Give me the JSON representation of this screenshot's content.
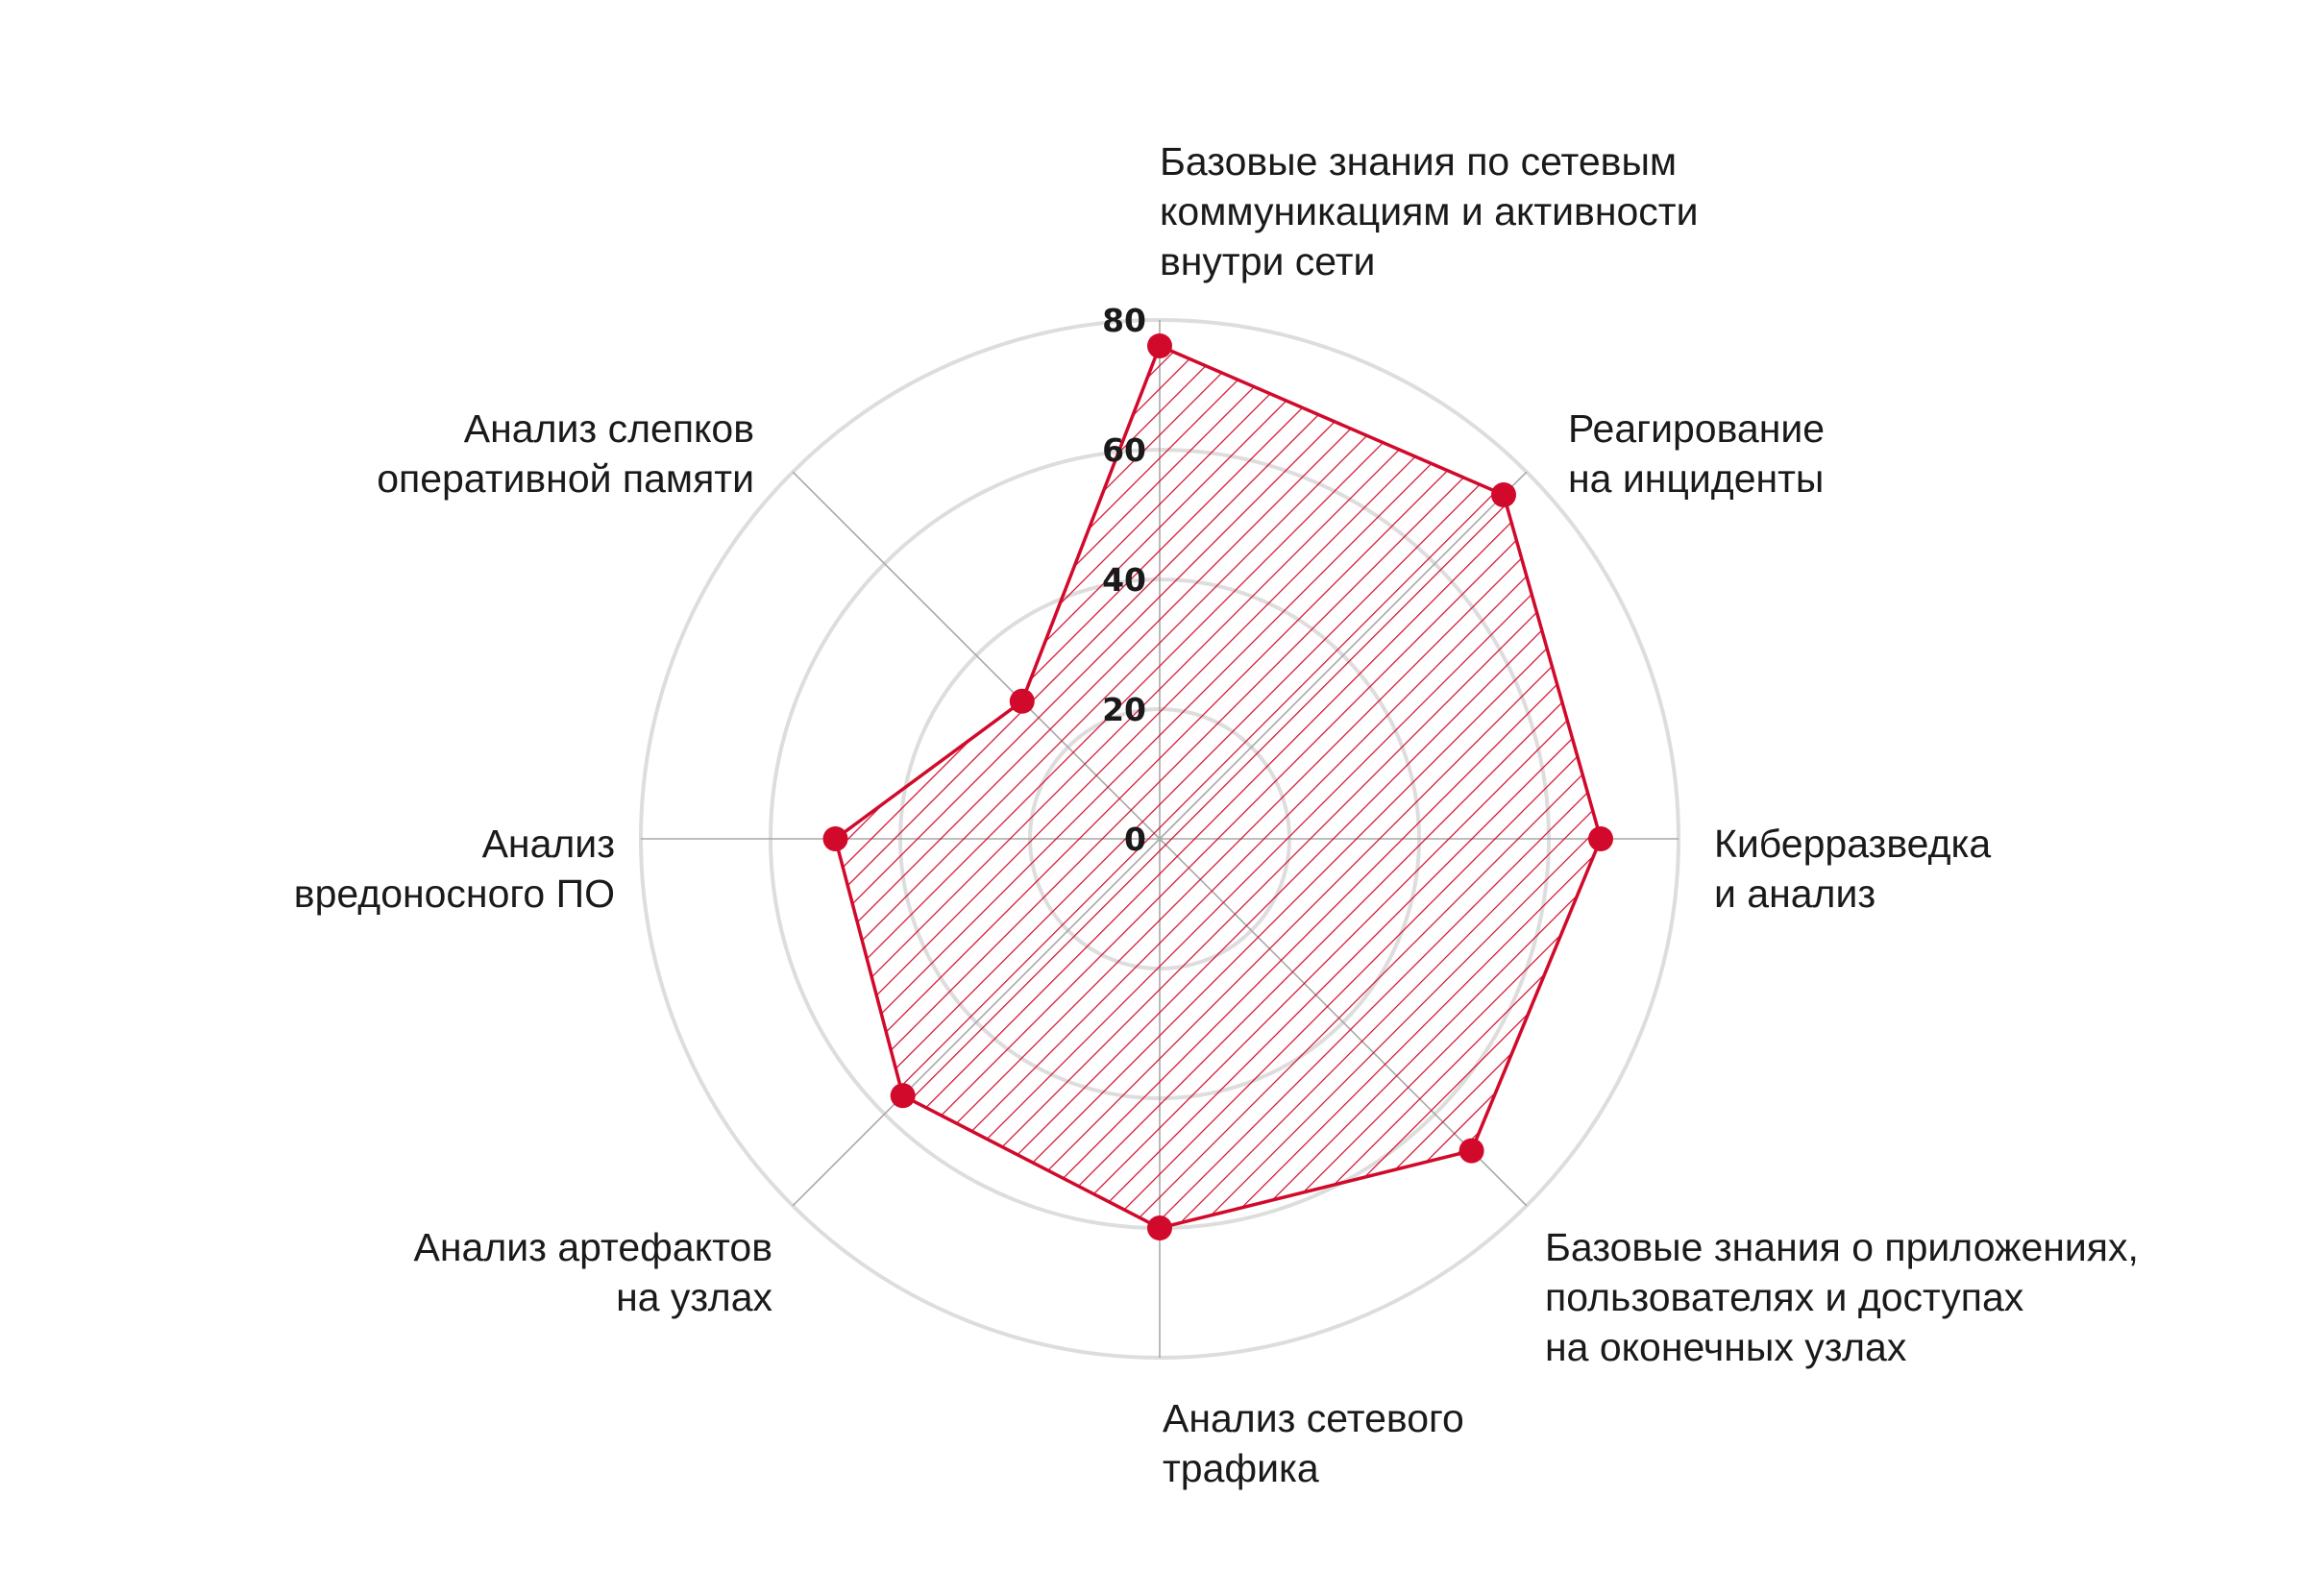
{
  "chart_data": {
    "type": "radar",
    "rlim": [
      0,
      80
    ],
    "ticks": [
      "0",
      "20",
      "40",
      "60",
      "80"
    ],
    "tick_values": [
      0,
      20,
      40,
      60,
      80
    ],
    "grid": true,
    "legend": "none",
    "categories": [
      [
        "Базовые знания по сетевым",
        "коммуникациям и активности",
        "внутри сети"
      ],
      [
        "Реагирование",
        "на инциденты"
      ],
      [
        "Киберразведка",
        "и анализ"
      ],
      [
        "Базовые знания о приложениях,",
        "пользователях и доступах",
        "на оконечных узлах"
      ],
      [
        "Анализ сетевого",
        "трафика"
      ],
      [
        "Анализ артефактов",
        "на узлах"
      ],
      [
        "Анализ",
        "вредоносного ПО"
      ],
      [
        "Анализ слепков",
        "оперативной памяти"
      ]
    ],
    "series": [
      {
        "values": [
          76,
          75,
          68,
          68,
          60,
          56,
          50,
          30
        ]
      }
    ],
    "colors": {
      "series": "#d10a2b",
      "grid": "#dddddd",
      "spoke": "#a8a8a8"
    }
  }
}
